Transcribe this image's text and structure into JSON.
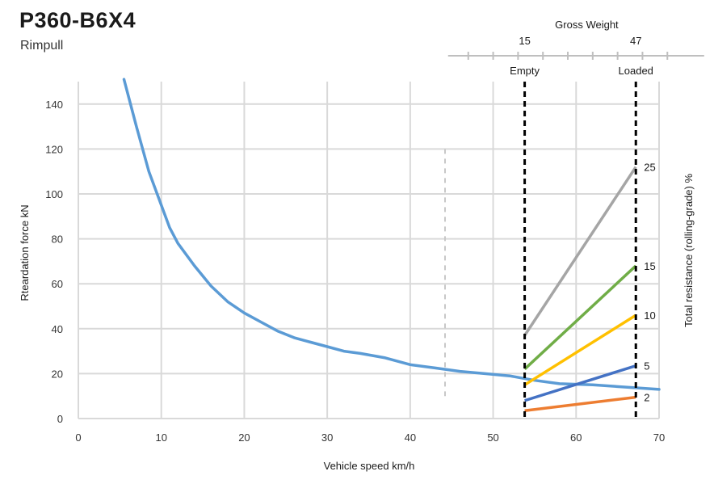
{
  "header": {
    "title": "P360-B6X4",
    "subtitle": "Rimpull"
  },
  "chart_data": {
    "type": "line",
    "xlabel": "Vehicle speed km/h",
    "ylabel": "Rteardation force kN",
    "y2label": "Total resistance (rolling-grade) %",
    "xlim": [
      0,
      70
    ],
    "ylim": [
      0,
      150
    ],
    "xticks": [
      "0",
      "10",
      "20",
      "30",
      "40",
      "50",
      "60",
      "70"
    ],
    "yticks": [
      "0",
      "20",
      "40",
      "60",
      "80",
      "100",
      "120",
      "140"
    ],
    "grid": true,
    "rimpull_curve": {
      "color": "#5b9bd5",
      "points": [
        [
          5.5,
          151
        ],
        [
          7,
          130
        ],
        [
          8.5,
          110
        ],
        [
          10,
          95
        ],
        [
          11,
          85
        ],
        [
          12,
          78
        ],
        [
          14,
          68
        ],
        [
          16,
          59
        ],
        [
          18,
          52
        ],
        [
          20,
          47
        ],
        [
          22,
          43
        ],
        [
          24,
          39
        ],
        [
          26,
          36
        ],
        [
          28,
          34
        ],
        [
          30,
          32
        ],
        [
          32,
          30
        ],
        [
          34,
          29
        ],
        [
          37,
          27
        ],
        [
          40,
          24
        ],
        [
          43,
          22.5
        ],
        [
          46,
          21
        ],
        [
          49,
          20
        ],
        [
          52,
          19
        ],
        [
          55,
          17
        ],
        [
          58,
          15.5
        ],
        [
          62,
          15
        ],
        [
          66,
          14
        ],
        [
          70,
          13
        ]
      ]
    },
    "gross_weight": {
      "label": "Gross Weight",
      "empty_value": "15",
      "loaded_value": "47",
      "empty_label": "Empty",
      "loaded_label": "Loaded",
      "empty_speed": 53.8,
      "loaded_speed": 67.2,
      "axis_speed_range": [
        47,
        73
      ],
      "axis_ticks": [
        47,
        50,
        53,
        56,
        59,
        62,
        65,
        68,
        71
      ]
    },
    "dashed_marker_speed": 44.2,
    "resistance_series": [
      {
        "name": "25",
        "color": "#a5a5a5",
        "empty": 37,
        "loaded": 112
      },
      {
        "name": "15",
        "color": "#70ad47",
        "empty": 22,
        "loaded": 68
      },
      {
        "name": "10",
        "color": "#ffc000",
        "empty": 15,
        "loaded": 46
      },
      {
        "name": "5",
        "color": "#4472c4",
        "empty": 8,
        "loaded": 23.5
      },
      {
        "name": "2",
        "color": "#ed7d31",
        "empty": 3.5,
        "loaded": 9.5
      }
    ]
  }
}
